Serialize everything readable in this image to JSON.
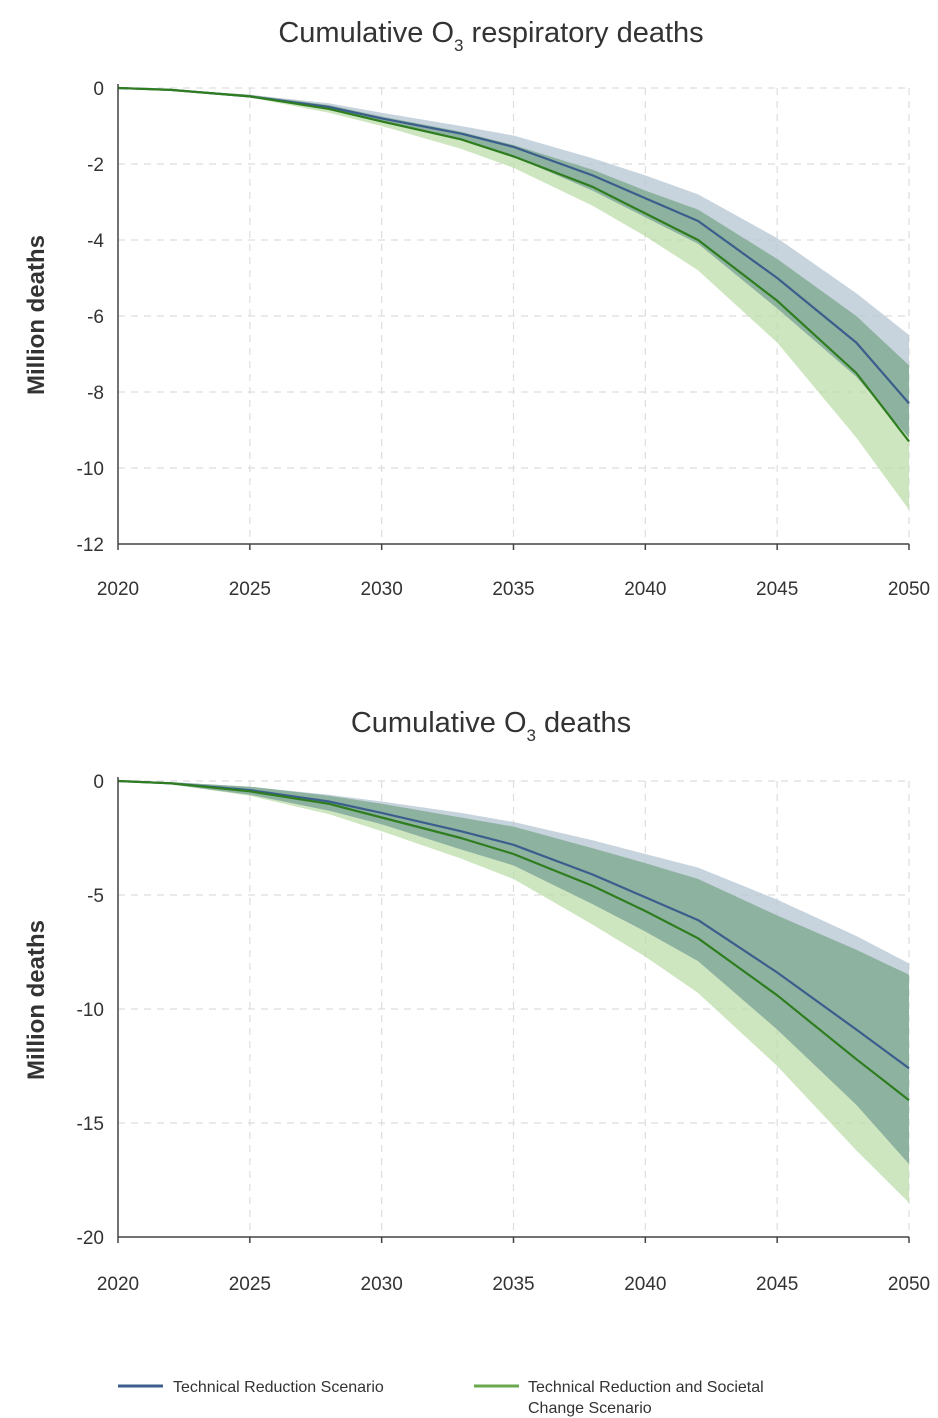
{
  "legend": {
    "series1": "Technical Reduction Scenario",
    "series2_line1": "Technical Reduction and Societal",
    "series2_line2": "Change Scenario"
  },
  "colors": {
    "series1_line": "#3b5e8c",
    "series1_band": "#b4c4d2",
    "series2_line": "#2e7d1f",
    "series2_band": "#b8dca4",
    "overlap_band": "#7fa890",
    "grid": "#dddddd",
    "axis": "#444444"
  },
  "chart_data": [
    {
      "type": "line",
      "title_main": "Cumulative O",
      "title_sub": "3",
      "title_rest": " respiratory deaths",
      "xlabel": "",
      "ylabel": "Million deaths",
      "xlim": [
        2020,
        2050
      ],
      "ylim": [
        -12,
        0
      ],
      "xticks": [
        "2020",
        "2025",
        "2030",
        "2035",
        "2040",
        "2045",
        "2050"
      ],
      "yticks": [
        "0",
        "-2",
        "-4",
        "-6",
        "-8",
        "-10",
        "-12"
      ],
      "grid": true,
      "x": [
        2020,
        2022,
        2025,
        2028,
        2030,
        2033,
        2035,
        2038,
        2040,
        2042,
        2045,
        2048,
        2050
      ],
      "series": [
        {
          "name": "Technical Reduction Scenario",
          "values": [
            0,
            -0.05,
            -0.22,
            -0.5,
            -0.8,
            -1.2,
            -1.55,
            -2.3,
            -2.9,
            -3.5,
            -5.0,
            -6.7,
            -8.3
          ],
          "lower": [
            0,
            -0.06,
            -0.25,
            -0.55,
            -0.9,
            -1.35,
            -1.8,
            -2.7,
            -3.4,
            -4.1,
            -5.8,
            -7.6,
            -9.2
          ],
          "upper": [
            0,
            -0.04,
            -0.18,
            -0.4,
            -0.65,
            -1.0,
            -1.25,
            -1.85,
            -2.3,
            -2.8,
            -3.95,
            -5.4,
            -6.5
          ]
        },
        {
          "name": "Technical Reduction and Societal Change Scenario",
          "values": [
            0,
            -0.05,
            -0.22,
            -0.55,
            -0.88,
            -1.35,
            -1.8,
            -2.6,
            -3.3,
            -4.0,
            -5.6,
            -7.5,
            -9.3
          ],
          "lower": [
            0,
            -0.06,
            -0.25,
            -0.65,
            -1.0,
            -1.6,
            -2.1,
            -3.1,
            -3.9,
            -4.8,
            -6.7,
            -9.2,
            -11.1
          ],
          "upper": [
            0,
            -0.04,
            -0.18,
            -0.45,
            -0.75,
            -1.15,
            -1.5,
            -2.15,
            -2.7,
            -3.2,
            -4.5,
            -6.0,
            -7.3
          ]
        }
      ]
    },
    {
      "type": "line",
      "title_main": "Cumulative O",
      "title_sub": "3",
      "title_rest": " deaths",
      "xlabel": "",
      "ylabel": "Million deaths",
      "xlim": [
        2020,
        2050
      ],
      "ylim": [
        -20,
        0
      ],
      "xticks": [
        "2020",
        "2025",
        "2030",
        "2035",
        "2040",
        "2045",
        "2050"
      ],
      "yticks": [
        "0",
        "-5",
        "-10",
        "-15",
        "-20"
      ],
      "grid": true,
      "x": [
        2020,
        2022,
        2025,
        2028,
        2030,
        2033,
        2035,
        2038,
        2040,
        2042,
        2045,
        2048,
        2050
      ],
      "series": [
        {
          "name": "Technical Reduction Scenario",
          "values": [
            0,
            -0.1,
            -0.4,
            -0.9,
            -1.4,
            -2.2,
            -2.8,
            -4.1,
            -5.1,
            -6.1,
            -8.4,
            -10.9,
            -12.6
          ],
          "lower": [
            0,
            -0.15,
            -0.6,
            -1.3,
            -1.9,
            -3.0,
            -3.7,
            -5.4,
            -6.6,
            -7.9,
            -10.9,
            -14.2,
            -16.8
          ],
          "upper": [
            0,
            -0.05,
            -0.25,
            -0.6,
            -0.9,
            -1.4,
            -1.8,
            -2.6,
            -3.2,
            -3.8,
            -5.2,
            -6.8,
            -8.0
          ]
        },
        {
          "name": "Technical Reduction and Societal Change Scenario",
          "values": [
            0,
            -0.1,
            -0.45,
            -1.0,
            -1.6,
            -2.5,
            -3.2,
            -4.6,
            -5.7,
            -6.9,
            -9.4,
            -12.2,
            -14.0
          ],
          "lower": [
            0,
            -0.15,
            -0.65,
            -1.45,
            -2.2,
            -3.4,
            -4.3,
            -6.3,
            -7.7,
            -9.3,
            -12.5,
            -16.2,
            -18.5
          ],
          "upper": [
            0,
            -0.05,
            -0.25,
            -0.65,
            -1.0,
            -1.6,
            -2.0,
            -2.95,
            -3.6,
            -4.3,
            -5.9,
            -7.4,
            -8.5
          ]
        }
      ]
    }
  ]
}
